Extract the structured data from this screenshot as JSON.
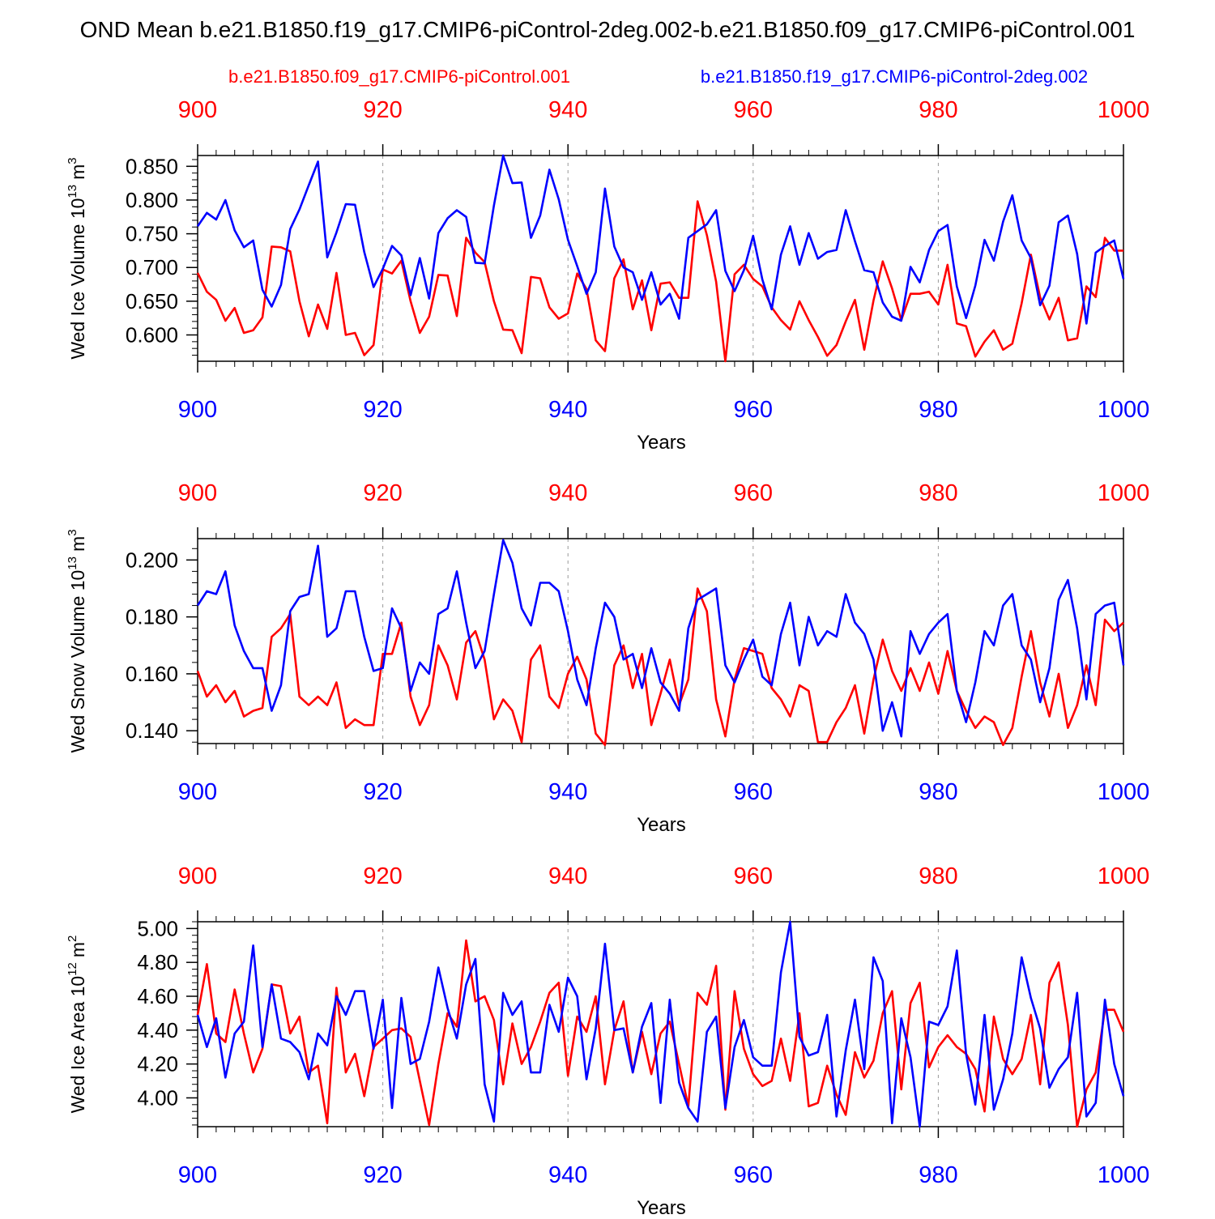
{
  "title": "OND Mean b.e21.B1850.f19_g17.CMIP6-piControl-2deg.002-b.e21.B1850.f09_g17.CMIP6-piControl.001",
  "legend": {
    "red_label": "b.e21.B1850.f09_g17.CMIP6-piControl.001",
    "blue_label": "b.e21.B1850.f19_g17.CMIP6-piControl-2deg.002"
  },
  "colors": {
    "red": "#ff0000",
    "blue": "#0000ff",
    "axis": "#000000",
    "grid": "#999999"
  },
  "chart_data": [
    {
      "type": "line",
      "title": "",
      "ylabel_main": "Wed Ice Volume 10",
      "ylabel_exp": "13",
      "ylabel_unit": "m",
      "ylabel_unit_exp": "3",
      "xlabel": "Years",
      "xlim": [
        900,
        1000
      ],
      "ylim": [
        0.561,
        0.866
      ],
      "yticks": [
        0.6,
        0.65,
        0.7,
        0.75,
        0.8,
        0.85
      ],
      "ytick_labels": [
        "0.600",
        "0.650",
        "0.700",
        "0.750",
        "0.800",
        "0.850"
      ],
      "yminor_step": 0.01,
      "xticks": [
        900,
        920,
        940,
        960,
        980,
        1000
      ],
      "xtick_labels": [
        "900",
        "920",
        "940",
        "960",
        "980",
        "1000"
      ],
      "x": [
        900,
        901,
        902,
        903,
        904,
        905,
        906,
        907,
        908,
        909,
        910,
        911,
        912,
        913,
        914,
        915,
        916,
        917,
        918,
        919,
        920,
        921,
        922,
        923,
        924,
        925,
        926,
        927,
        928,
        929,
        930,
        931,
        932,
        933,
        934,
        935,
        936,
        937,
        938,
        939,
        940,
        941,
        942,
        943,
        944,
        945,
        946,
        947,
        948,
        949,
        950,
        951,
        952,
        953,
        954,
        955,
        956,
        957,
        958,
        959,
        960,
        961,
        962,
        963,
        964,
        965,
        966,
        967,
        968,
        969,
        970,
        971,
        972,
        973,
        974,
        975,
        976,
        977,
        978,
        979,
        980,
        981,
        982,
        983,
        984,
        985,
        986,
        987,
        988,
        989,
        990,
        991,
        992,
        993,
        994,
        995,
        996,
        997,
        998,
        999,
        1000
      ],
      "series": [
        {
          "name": "b.e21.B1850.f09_g17.CMIP6-piControl.001",
          "color": "red",
          "values": [
            0.692,
            0.664,
            0.652,
            0.621,
            0.64,
            0.603,
            0.607,
            0.626,
            0.731,
            0.73,
            0.724,
            0.65,
            0.598,
            0.645,
            0.609,
            0.692,
            0.6,
            0.603,
            0.57,
            0.585,
            0.697,
            0.691,
            0.71,
            0.65,
            0.603,
            0.627,
            0.689,
            0.688,
            0.628,
            0.744,
            0.722,
            0.708,
            0.65,
            0.608,
            0.607,
            0.573,
            0.686,
            0.684,
            0.641,
            0.624,
            0.632,
            0.691,
            0.668,
            0.592,
            0.576,
            0.684,
            0.712,
            0.638,
            0.681,
            0.607,
            0.676,
            0.678,
            0.655,
            0.655,
            0.798,
            0.748,
            0.679,
            0.561,
            0.69,
            0.704,
            0.683,
            0.672,
            0.641,
            0.622,
            0.608,
            0.65,
            0.622,
            0.597,
            0.569,
            0.585,
            0.62,
            0.652,
            0.578,
            0.651,
            0.709,
            0.669,
            0.622,
            0.661,
            0.661,
            0.664,
            0.645,
            0.704,
            0.617,
            0.613,
            0.568,
            0.59,
            0.607,
            0.578,
            0.587,
            0.647,
            0.719,
            0.656,
            0.623,
            0.655,
            0.592,
            0.595,
            0.672,
            0.656,
            0.744,
            0.725,
            0.725
          ]
        },
        {
          "name": "b.e21.B1850.f19_g17.CMIP6-piControl-2deg.002",
          "color": "blue",
          "values": [
            0.761,
            0.781,
            0.771,
            0.8,
            0.755,
            0.73,
            0.74,
            0.667,
            0.642,
            0.674,
            0.757,
            0.786,
            0.822,
            0.857,
            0.715,
            0.752,
            0.794,
            0.793,
            0.723,
            0.671,
            0.698,
            0.732,
            0.718,
            0.659,
            0.714,
            0.654,
            0.751,
            0.773,
            0.785,
            0.775,
            0.707,
            0.706,
            0.792,
            0.866,
            0.825,
            0.826,
            0.744,
            0.777,
            0.845,
            0.801,
            0.741,
            0.702,
            0.661,
            0.693,
            0.817,
            0.731,
            0.7,
            0.693,
            0.652,
            0.693,
            0.645,
            0.661,
            0.624,
            0.744,
            0.754,
            0.764,
            0.785,
            0.695,
            0.665,
            0.696,
            0.747,
            0.682,
            0.638,
            0.719,
            0.761,
            0.704,
            0.751,
            0.713,
            0.723,
            0.726,
            0.785,
            0.739,
            0.696,
            0.693,
            0.648,
            0.627,
            0.621,
            0.701,
            0.678,
            0.726,
            0.754,
            0.763,
            0.672,
            0.625,
            0.673,
            0.741,
            0.71,
            0.768,
            0.807,
            0.74,
            0.714,
            0.644,
            0.673,
            0.767,
            0.777,
            0.72,
            0.617,
            0.722,
            0.732,
            0.74,
            0.683
          ]
        }
      ]
    },
    {
      "type": "line",
      "title": "",
      "ylabel_main": "Wed Snow Volume 10",
      "ylabel_exp": "13",
      "ylabel_unit": "m",
      "ylabel_unit_exp": "3",
      "xlabel": "Years",
      "xlim": [
        900,
        1000
      ],
      "ylim": [
        0.1355,
        0.2075
      ],
      "yticks": [
        0.14,
        0.16,
        0.18,
        0.2
      ],
      "ytick_labels": [
        "0.140",
        "0.160",
        "0.180",
        "0.200"
      ],
      "yminor_step": 0.004,
      "xticks": [
        900,
        920,
        940,
        960,
        980,
        1000
      ],
      "xtick_labels": [
        "900",
        "920",
        "940",
        "960",
        "980",
        "1000"
      ],
      "x": [
        900,
        901,
        902,
        903,
        904,
        905,
        906,
        907,
        908,
        909,
        910,
        911,
        912,
        913,
        914,
        915,
        916,
        917,
        918,
        919,
        920,
        921,
        922,
        923,
        924,
        925,
        926,
        927,
        928,
        929,
        930,
        931,
        932,
        933,
        934,
        935,
        936,
        937,
        938,
        939,
        940,
        941,
        942,
        943,
        944,
        945,
        946,
        947,
        948,
        949,
        950,
        951,
        952,
        953,
        954,
        955,
        956,
        957,
        958,
        959,
        960,
        961,
        962,
        963,
        964,
        965,
        966,
        967,
        968,
        969,
        970,
        971,
        972,
        973,
        974,
        975,
        976,
        977,
        978,
        979,
        980,
        981,
        982,
        983,
        984,
        985,
        986,
        987,
        988,
        989,
        990,
        991,
        992,
        993,
        994,
        995,
        996,
        997,
        998,
        999,
        1000
      ],
      "series": [
        {
          "name": "b.e21.B1850.f09_g17.CMIP6-piControl.001",
          "color": "red",
          "values": [
            0.161,
            0.152,
            0.156,
            0.15,
            0.154,
            0.145,
            0.147,
            0.148,
            0.173,
            0.176,
            0.181,
            0.152,
            0.149,
            0.152,
            0.149,
            0.157,
            0.141,
            0.144,
            0.142,
            0.142,
            0.167,
            0.167,
            0.178,
            0.152,
            0.142,
            0.149,
            0.17,
            0.163,
            0.151,
            0.171,
            0.175,
            0.165,
            0.144,
            0.151,
            0.147,
            0.136,
            0.165,
            0.17,
            0.152,
            0.148,
            0.16,
            0.166,
            0.158,
            0.139,
            0.135,
            0.163,
            0.17,
            0.155,
            0.167,
            0.142,
            0.153,
            0.165,
            0.149,
            0.158,
            0.19,
            0.182,
            0.151,
            0.138,
            0.158,
            0.169,
            0.168,
            0.167,
            0.155,
            0.151,
            0.145,
            0.156,
            0.154,
            0.136,
            0.136,
            0.143,
            0.148,
            0.156,
            0.139,
            0.158,
            0.172,
            0.161,
            0.154,
            0.162,
            0.154,
            0.164,
            0.153,
            0.168,
            0.154,
            0.147,
            0.141,
            0.145,
            0.143,
            0.135,
            0.141,
            0.159,
            0.175,
            0.157,
            0.145,
            0.16,
            0.141,
            0.149,
            0.163,
            0.149,
            0.179,
            0.175,
            0.178
          ]
        },
        {
          "name": "b.e21.B1850.f19_g17.CMIP6-piControl-2deg.002",
          "color": "blue",
          "values": [
            0.184,
            0.189,
            0.188,
            0.196,
            0.177,
            0.168,
            0.162,
            0.162,
            0.147,
            0.156,
            0.182,
            0.187,
            0.188,
            0.205,
            0.173,
            0.176,
            0.189,
            0.189,
            0.173,
            0.161,
            0.162,
            0.183,
            0.176,
            0.154,
            0.164,
            0.16,
            0.181,
            0.183,
            0.196,
            0.178,
            0.162,
            0.168,
            0.188,
            0.207,
            0.199,
            0.183,
            0.177,
            0.192,
            0.192,
            0.189,
            0.175,
            0.158,
            0.149,
            0.169,
            0.185,
            0.18,
            0.165,
            0.167,
            0.155,
            0.169,
            0.157,
            0.153,
            0.147,
            0.176,
            0.186,
            0.188,
            0.19,
            0.163,
            0.157,
            0.165,
            0.172,
            0.159,
            0.156,
            0.174,
            0.185,
            0.163,
            0.18,
            0.17,
            0.175,
            0.173,
            0.188,
            0.178,
            0.174,
            0.165,
            0.14,
            0.15,
            0.138,
            0.175,
            0.167,
            0.174,
            0.178,
            0.181,
            0.154,
            0.143,
            0.157,
            0.175,
            0.17,
            0.184,
            0.188,
            0.17,
            0.165,
            0.15,
            0.162,
            0.186,
            0.193,
            0.176,
            0.151,
            0.181,
            0.184,
            0.185,
            0.163
          ]
        }
      ]
    },
    {
      "type": "line",
      "title": "",
      "ylabel_main": "Wed Ice Area 10",
      "ylabel_exp": "12",
      "ylabel_unit": "m",
      "ylabel_unit_exp": "2",
      "xlabel": "Years",
      "xlim": [
        900,
        1000
      ],
      "ylim": [
        3.83,
        5.04
      ],
      "yticks": [
        4.0,
        4.2,
        4.4,
        4.6,
        4.8,
        5.0
      ],
      "ytick_labels": [
        "4.00",
        "4.20",
        "4.40",
        "4.60",
        "4.80",
        "5.00"
      ],
      "yminor_step": 0.04,
      "xticks": [
        900,
        920,
        940,
        960,
        980,
        1000
      ],
      "xtick_labels": [
        "900",
        "920",
        "940",
        "960",
        "980",
        "1000"
      ],
      "x": [
        900,
        901,
        902,
        903,
        904,
        905,
        906,
        907,
        908,
        909,
        910,
        911,
        912,
        913,
        914,
        915,
        916,
        917,
        918,
        919,
        920,
        921,
        922,
        923,
        924,
        925,
        926,
        927,
        928,
        929,
        930,
        931,
        932,
        933,
        934,
        935,
        936,
        937,
        938,
        939,
        940,
        941,
        942,
        943,
        944,
        945,
        946,
        947,
        948,
        949,
        950,
        951,
        952,
        953,
        954,
        955,
        956,
        957,
        958,
        959,
        960,
        961,
        962,
        963,
        964,
        965,
        966,
        967,
        968,
        969,
        970,
        971,
        972,
        973,
        974,
        975,
        976,
        977,
        978,
        979,
        980,
        981,
        982,
        983,
        984,
        985,
        986,
        987,
        988,
        989,
        990,
        991,
        992,
        993,
        994,
        995,
        996,
        997,
        998,
        999,
        1000
      ],
      "series": [
        {
          "name": "b.e21.B1850.f09_g17.CMIP6-piControl.001",
          "color": "red",
          "values": [
            4.49,
            4.79,
            4.38,
            4.33,
            4.64,
            4.38,
            4.15,
            4.29,
            4.67,
            4.66,
            4.38,
            4.48,
            4.15,
            4.19,
            3.85,
            4.65,
            4.15,
            4.26,
            4.01,
            4.3,
            4.35,
            4.4,
            4.41,
            4.36,
            4.1,
            3.84,
            4.2,
            4.5,
            4.42,
            4.93,
            4.57,
            4.6,
            4.46,
            4.08,
            4.44,
            4.2,
            4.3,
            4.45,
            4.62,
            4.68,
            4.13,
            4.48,
            4.39,
            4.6,
            4.08,
            4.4,
            4.57,
            4.15,
            4.39,
            4.14,
            4.38,
            4.45,
            4.2,
            3.95,
            4.62,
            4.55,
            4.78,
            3.93,
            4.63,
            4.29,
            4.14,
            4.07,
            4.1,
            4.35,
            4.1,
            4.5,
            3.95,
            3.97,
            4.19,
            4.02,
            3.9,
            4.27,
            4.12,
            4.22,
            4.5,
            4.63,
            4.05,
            4.56,
            4.68,
            4.18,
            4.3,
            4.37,
            4.3,
            4.26,
            4.17,
            3.92,
            4.48,
            4.23,
            4.14,
            4.23,
            4.49,
            4.08,
            4.68,
            4.8,
            4.43,
            3.83,
            4.05,
            4.15,
            4.52,
            4.52,
            4.39
          ]
        },
        {
          "name": "b.e21.B1850.f19_g17.CMIP6-piControl-2deg.002",
          "color": "blue",
          "values": [
            4.49,
            4.3,
            4.47,
            4.12,
            4.38,
            4.45,
            4.9,
            4.3,
            4.67,
            4.35,
            4.33,
            4.27,
            4.11,
            4.38,
            4.31,
            4.6,
            4.49,
            4.63,
            4.63,
            4.29,
            4.58,
            3.94,
            4.59,
            4.2,
            4.23,
            4.45,
            4.77,
            4.53,
            4.35,
            4.67,
            4.82,
            4.08,
            3.86,
            4.62,
            4.49,
            4.57,
            4.15,
            4.15,
            4.55,
            4.39,
            4.71,
            4.6,
            4.11,
            4.41,
            4.91,
            4.4,
            4.41,
            4.15,
            4.42,
            4.56,
            3.97,
            4.58,
            4.09,
            3.94,
            3.86,
            4.39,
            4.48,
            3.94,
            4.3,
            4.46,
            4.24,
            4.19,
            4.19,
            4.74,
            5.04,
            4.36,
            4.25,
            4.27,
            4.49,
            3.89,
            4.28,
            4.58,
            4.17,
            4.83,
            4.69,
            3.85,
            4.47,
            4.24,
            3.83,
            4.45,
            4.43,
            4.54,
            4.87,
            4.26,
            3.96,
            4.49,
            3.93,
            4.11,
            4.38,
            4.83,
            4.59,
            4.41,
            4.06,
            4.17,
            4.24,
            4.62,
            3.89,
            3.97,
            4.58,
            4.2,
            4.01
          ]
        }
      ]
    }
  ]
}
